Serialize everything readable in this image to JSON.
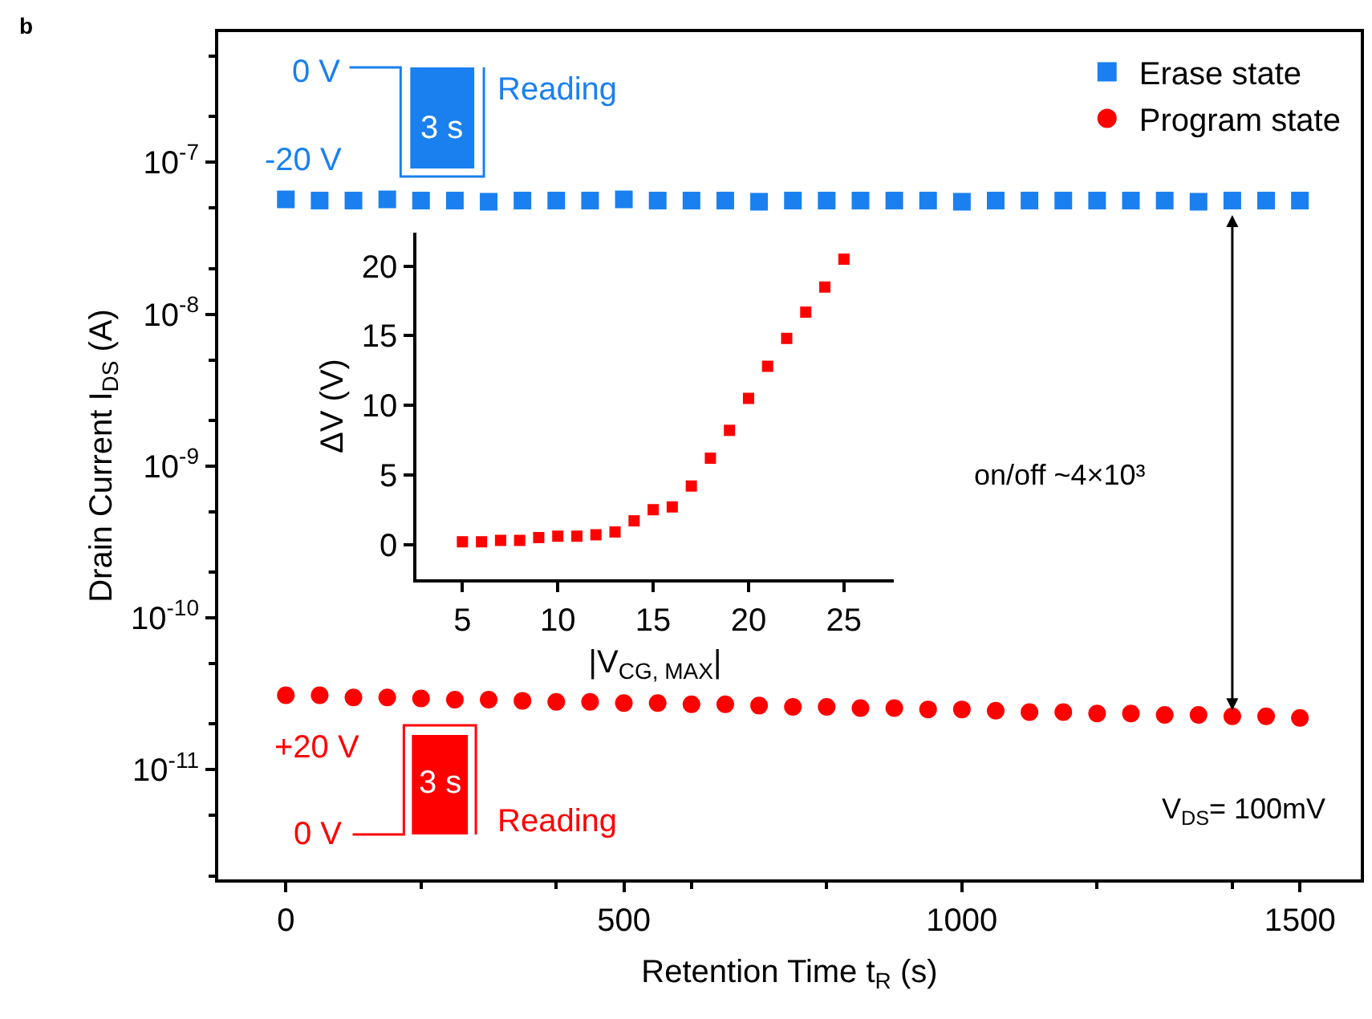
{
  "chart_data": [
    {
      "type": "scatter",
      "xlabel": "Retention Time t$_{R}$ (s)",
      "ylabel": "Drain Current I$_{DS}$ (A)",
      "log": "y",
      "grid": false,
      "legend": "top right",
      "x": [
        0,
        50,
        100,
        150,
        200,
        250,
        300,
        350,
        400,
        450,
        500,
        550,
        600,
        650,
        700,
        750,
        800,
        850,
        900,
        950,
        1000,
        1050,
        1100,
        1150,
        1200,
        1250,
        1300,
        1350,
        1400,
        1450,
        1500
      ],
      "series": [
        {
          "name": "Erase state",
          "color": "#1a80f0",
          "marker": "square",
          "values": [
            5.7e-08,
            5.6e-08,
            5.6e-08,
            5.7e-08,
            5.6e-08,
            5.6e-08,
            5.5e-08,
            5.6e-08,
            5.6e-08,
            5.6e-08,
            5.7e-08,
            5.6e-08,
            5.6e-08,
            5.6e-08,
            5.5e-08,
            5.6e-08,
            5.6e-08,
            5.6e-08,
            5.6e-08,
            5.6e-08,
            5.5e-08,
            5.6e-08,
            5.6e-08,
            5.6e-08,
            5.6e-08,
            5.6e-08,
            5.6e-08,
            5.5e-08,
            5.6e-08,
            5.6e-08,
            5.6e-08
          ]
        },
        {
          "name": "Program state",
          "color": "#ff0000",
          "marker": "circle",
          "values": [
            3.1e-11,
            3.1e-11,
            3e-11,
            3e-11,
            2.95e-11,
            2.9e-11,
            2.9e-11,
            2.85e-11,
            2.8e-11,
            2.8e-11,
            2.75e-11,
            2.75e-11,
            2.7e-11,
            2.7e-11,
            2.65e-11,
            2.6e-11,
            2.6e-11,
            2.55e-11,
            2.55e-11,
            2.5e-11,
            2.5e-11,
            2.45e-11,
            2.4e-11,
            2.4e-11,
            2.35e-11,
            2.35e-11,
            2.3e-11,
            2.3e-11,
            2.25e-11,
            2.25e-11,
            2.2e-11
          ]
        }
      ],
      "xlim": [
        -100,
        1590
      ],
      "xticks": [
        0,
        500,
        1000,
        1500
      ],
      "ylim": [
        1.9e-12,
        7.2e-07
      ],
      "yticks": [
        {
          "value": 1e-11,
          "label": "10$^{-11}$"
        },
        {
          "value": 1e-10,
          "label": "10$^{-10}$"
        },
        {
          "value": 1e-09,
          "label": "10$^{-9}$"
        },
        {
          "value": 1e-08,
          "label": "10$^{-8}$"
        },
        {
          "value": 1e-07,
          "label": "10$^{-7}$"
        }
      ],
      "annotations": [
        "b",
        "0 V",
        "-20 V",
        "3 s",
        "Reading",
        "+20 V",
        "3 s",
        "Reading",
        "0 V",
        "V$_{DS}$= 100mV",
        "on/off ~4×10³"
      ]
    },
    {
      "type": "scatter",
      "xlabel": "|V$_{CG, MAX}$|",
      "ylabel": "ΔV (V)",
      "grid": false,
      "legend": false,
      "marker": "square",
      "x": [
        5,
        6,
        7,
        8,
        9,
        10,
        11,
        12,
        13,
        14,
        15,
        16,
        17,
        18,
        19,
        20,
        21,
        22,
        23,
        24,
        25
      ],
      "series": [
        {
          "color": "#ff0000",
          "values": [
            0.2,
            0.2,
            0.3,
            0.3,
            0.5,
            0.6,
            0.6,
            0.7,
            0.9,
            1.7,
            2.5,
            2.7,
            4.2,
            6.2,
            8.2,
            10.5,
            12.8,
            14.8,
            16.7,
            18.5,
            20.5
          ]
        }
      ],
      "xlim": [
        2.6,
        27.6
      ],
      "xticks": [
        5,
        10,
        15,
        20,
        25
      ],
      "ylim": [
        -2.5,
        22.4
      ],
      "yticks": [
        0,
        5,
        10,
        15,
        20
      ]
    }
  ]
}
